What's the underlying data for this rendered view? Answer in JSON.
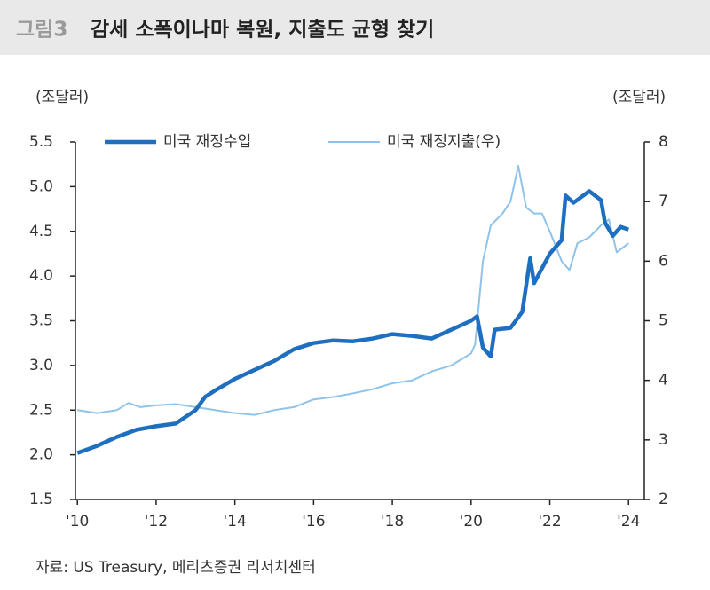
{
  "chart_data": {
    "type": "line",
    "figure_label": "그림3",
    "title": "감세 소폭이나마 복원, 지출도 균형 찾기",
    "y_label": "(조달러)",
    "y2_label": "(조달러)",
    "source": "자료: US Treasury, 메리츠증권 리서치센터",
    "xlim": [
      2009.95,
      2024.4
    ],
    "xticks": [
      {
        "value": 2010,
        "label": "'10"
      },
      {
        "value": 2012,
        "label": "'12"
      },
      {
        "value": 2014,
        "label": "'14"
      },
      {
        "value": 2016,
        "label": "'16"
      },
      {
        "value": 2018,
        "label": "'18"
      },
      {
        "value": 2020,
        "label": "'20"
      },
      {
        "value": 2022,
        "label": "'22"
      },
      {
        "value": 2024,
        "label": "'24"
      }
    ],
    "ylim": [
      1.5,
      5.5
    ],
    "yticks": [
      1.5,
      {
        "value": 2,
        "label": "2.0"
      },
      2.5,
      {
        "value": 3,
        "label": "3.0"
      },
      3.5,
      {
        "value": 4,
        "label": "4.0"
      },
      4.5,
      {
        "value": 5,
        "label": "5.0"
      },
      5.5
    ],
    "y2lim": [
      2,
      8
    ],
    "y2ticks": [
      2,
      3,
      4,
      5,
      6,
      7,
      8
    ],
    "series": [
      {
        "name": "미국 재정수입",
        "color": "#1f6fc0",
        "width": 4.5,
        "x": [
          2010.0,
          2010.5,
          2011.0,
          2011.5,
          2012.0,
          2012.5,
          2013.0,
          2013.25,
          2013.5,
          2014.0,
          2014.5,
          2015.0,
          2015.5,
          2016.0,
          2016.5,
          2017.0,
          2017.5,
          2018.0,
          2018.5,
          2019.0,
          2019.5,
          2020.0,
          2020.15,
          2020.3,
          2020.5,
          2020.6,
          2021.0,
          2021.3,
          2021.5,
          2021.6,
          2022.0,
          2022.3,
          2022.4,
          2022.6,
          2023.0,
          2023.3,
          2023.4,
          2023.6,
          2023.8,
          2024.0
        ],
        "values": [
          2.02,
          2.1,
          2.2,
          2.28,
          2.32,
          2.35,
          2.5,
          2.65,
          2.72,
          2.85,
          2.95,
          3.05,
          3.18,
          3.25,
          3.28,
          3.27,
          3.3,
          3.35,
          3.33,
          3.3,
          3.4,
          3.5,
          3.55,
          3.2,
          3.1,
          3.4,
          3.42,
          3.6,
          4.2,
          3.92,
          4.25,
          4.4,
          4.9,
          4.82,
          4.95,
          4.85,
          4.6,
          4.45,
          4.55,
          4.52
        ]
      },
      {
        "name": "미국 재정지출(우)",
        "color": "#90c3ea",
        "width": 2,
        "axis": "y2",
        "x": [
          2010.0,
          2010.5,
          2011.0,
          2011.3,
          2011.6,
          2012.0,
          2012.5,
          2013.0,
          2013.5,
          2014.0,
          2014.5,
          2015.0,
          2015.5,
          2016.0,
          2016.5,
          2017.0,
          2017.5,
          2018.0,
          2018.5,
          2019.0,
          2019.5,
          2020.0,
          2020.1,
          2020.3,
          2020.5,
          2020.8,
          2021.0,
          2021.2,
          2021.4,
          2021.6,
          2021.8,
          2022.0,
          2022.3,
          2022.5,
          2022.7,
          2023.0,
          2023.3,
          2023.5,
          2023.7,
          2024.0
        ],
        "values": [
          3.5,
          3.45,
          3.5,
          3.62,
          3.55,
          3.58,
          3.6,
          3.55,
          3.5,
          3.45,
          3.42,
          3.5,
          3.55,
          3.68,
          3.72,
          3.78,
          3.85,
          3.95,
          4.0,
          4.15,
          4.25,
          4.45,
          4.6,
          6.0,
          6.6,
          6.8,
          7.0,
          7.6,
          6.9,
          6.8,
          6.8,
          6.5,
          6.0,
          5.85,
          6.3,
          6.4,
          6.6,
          6.7,
          6.15,
          6.3
        ]
      }
    ]
  }
}
